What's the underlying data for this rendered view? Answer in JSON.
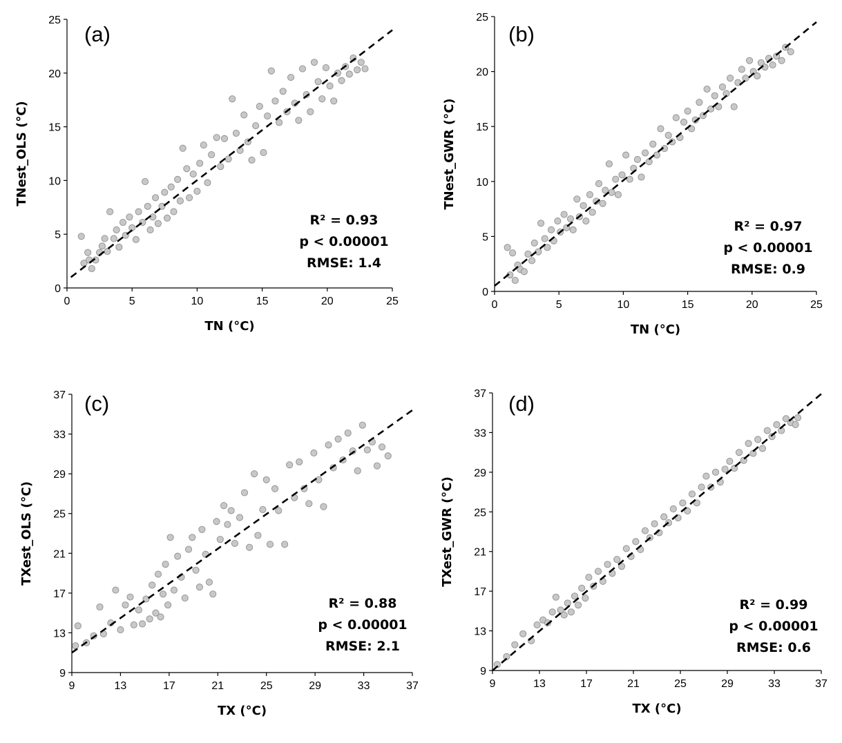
{
  "chart_data": [
    {
      "id": "a",
      "type": "scatter",
      "panel_label": "(a)",
      "xlabel": "TN (°C)",
      "ylabel": "TNest_OLS (°C)",
      "xlim": [
        0,
        25
      ],
      "ylim": [
        0,
        25
      ],
      "xticks": [
        0,
        5,
        10,
        15,
        20,
        25
      ],
      "yticks": [
        0,
        5,
        10,
        15,
        20,
        25
      ],
      "stats": [
        "R² = 0.93",
        "p < 0.00001",
        "RMSE: 1.4"
      ],
      "trendline": {
        "style": "dashed",
        "from": [
          0.3,
          1.0
        ],
        "to": [
          25,
          24
        ]
      },
      "point_color": "#c8c8c8",
      "points": [
        [
          1.1,
          4.8
        ],
        [
          1.3,
          2.3
        ],
        [
          1.6,
          3.3
        ],
        [
          1.7,
          2.6
        ],
        [
          1.9,
          1.8
        ],
        [
          2.2,
          2.6
        ],
        [
          2.5,
          3.3
        ],
        [
          2.7,
          3.9
        ],
        [
          2.9,
          4.6
        ],
        [
          3.1,
          3.4
        ],
        [
          3.3,
          7.1
        ],
        [
          3.6,
          4.6
        ],
        [
          3.8,
          5.4
        ],
        [
          4.0,
          3.8
        ],
        [
          4.3,
          6.1
        ],
        [
          4.5,
          4.9
        ],
        [
          4.8,
          6.6
        ],
        [
          5.0,
          5.6
        ],
        [
          5.3,
          4.5
        ],
        [
          5.5,
          7.1
        ],
        [
          5.8,
          6.1
        ],
        [
          6.0,
          9.9
        ],
        [
          6.2,
          7.6
        ],
        [
          6.4,
          5.4
        ],
        [
          6.6,
          6.6
        ],
        [
          6.8,
          8.4
        ],
        [
          7.0,
          6.0
        ],
        [
          7.3,
          7.6
        ],
        [
          7.5,
          8.9
        ],
        [
          7.7,
          6.5
        ],
        [
          8.0,
          9.4
        ],
        [
          8.2,
          7.1
        ],
        [
          8.5,
          10.1
        ],
        [
          8.7,
          8.1
        ],
        [
          8.9,
          13.0
        ],
        [
          9.2,
          11.1
        ],
        [
          9.4,
          8.4
        ],
        [
          9.7,
          10.6
        ],
        [
          10.0,
          9.0
        ],
        [
          10.2,
          11.6
        ],
        [
          10.5,
          13.3
        ],
        [
          10.8,
          9.8
        ],
        [
          11.1,
          12.4
        ],
        [
          11.5,
          14.0
        ],
        [
          11.8,
          11.3
        ],
        [
          12.1,
          13.9
        ],
        [
          12.4,
          12.0
        ],
        [
          12.7,
          17.6
        ],
        [
          13.0,
          14.4
        ],
        [
          13.3,
          12.8
        ],
        [
          13.6,
          16.1
        ],
        [
          13.9,
          13.6
        ],
        [
          14.2,
          11.9
        ],
        [
          14.5,
          15.1
        ],
        [
          14.8,
          16.9
        ],
        [
          15.1,
          12.6
        ],
        [
          15.4,
          16.0
        ],
        [
          15.7,
          20.2
        ],
        [
          16.0,
          17.4
        ],
        [
          16.3,
          15.4
        ],
        [
          16.6,
          18.3
        ],
        [
          16.9,
          16.4
        ],
        [
          17.2,
          19.6
        ],
        [
          17.5,
          17.2
        ],
        [
          17.8,
          15.6
        ],
        [
          18.1,
          20.4
        ],
        [
          18.4,
          18.0
        ],
        [
          18.7,
          16.4
        ],
        [
          19.0,
          21.0
        ],
        [
          19.3,
          19.2
        ],
        [
          19.6,
          17.6
        ],
        [
          19.9,
          20.5
        ],
        [
          20.2,
          18.8
        ],
        [
          20.5,
          17.4
        ],
        [
          20.8,
          20.0
        ],
        [
          21.1,
          19.3
        ],
        [
          21.4,
          20.6
        ],
        [
          21.7,
          19.9
        ],
        [
          22.0,
          21.4
        ],
        [
          22.3,
          20.3
        ],
        [
          22.6,
          21.0
        ],
        [
          22.9,
          20.4
        ]
      ]
    },
    {
      "id": "b",
      "type": "scatter",
      "panel_label": "(b)",
      "xlabel": "TN (°C)",
      "ylabel": "TNest_GWR (°C)",
      "xlim": [
        0,
        25
      ],
      "ylim": [
        0,
        25
      ],
      "xticks": [
        0,
        5,
        10,
        15,
        20,
        25
      ],
      "yticks": [
        0,
        5,
        10,
        15,
        20,
        25
      ],
      "stats": [
        "R² = 0.97",
        "p < 0.00001",
        "RMSE: 0.9"
      ],
      "trendline": {
        "style": "dashed",
        "from": [
          0,
          0.5
        ],
        "to": [
          25,
          24.5
        ]
      },
      "point_color": "#c8c8c8",
      "points": [
        [
          1.0,
          4.0
        ],
        [
          1.2,
          1.5
        ],
        [
          1.4,
          3.5
        ],
        [
          1.6,
          1.0
        ],
        [
          1.8,
          2.4
        ],
        [
          2.0,
          2.0
        ],
        [
          2.3,
          1.8
        ],
        [
          2.6,
          3.4
        ],
        [
          2.9,
          2.8
        ],
        [
          3.1,
          4.4
        ],
        [
          3.4,
          3.6
        ],
        [
          3.6,
          6.2
        ],
        [
          3.9,
          4.8
        ],
        [
          4.1,
          4.0
        ],
        [
          4.4,
          5.6
        ],
        [
          4.6,
          4.6
        ],
        [
          4.9,
          6.4
        ],
        [
          5.1,
          5.4
        ],
        [
          5.4,
          7.0
        ],
        [
          5.6,
          5.8
        ],
        [
          5.9,
          6.6
        ],
        [
          6.1,
          5.6
        ],
        [
          6.4,
          8.4
        ],
        [
          6.6,
          6.8
        ],
        [
          6.9,
          7.8
        ],
        [
          7.1,
          6.4
        ],
        [
          7.4,
          8.8
        ],
        [
          7.6,
          7.2
        ],
        [
          7.9,
          8.2
        ],
        [
          8.1,
          9.8
        ],
        [
          8.4,
          8.0
        ],
        [
          8.6,
          9.2
        ],
        [
          8.9,
          11.6
        ],
        [
          9.1,
          9.0
        ],
        [
          9.4,
          10.2
        ],
        [
          9.6,
          8.8
        ],
        [
          9.9,
          10.6
        ],
        [
          10.2,
          12.4
        ],
        [
          10.5,
          10.2
        ],
        [
          10.8,
          11.2
        ],
        [
          11.1,
          12.0
        ],
        [
          11.4,
          10.4
        ],
        [
          11.7,
          12.6
        ],
        [
          12.0,
          11.8
        ],
        [
          12.3,
          13.4
        ],
        [
          12.6,
          12.4
        ],
        [
          12.9,
          14.8
        ],
        [
          13.2,
          13.0
        ],
        [
          13.5,
          14.2
        ],
        [
          13.8,
          13.6
        ],
        [
          14.1,
          15.8
        ],
        [
          14.4,
          14.0
        ],
        [
          14.7,
          15.4
        ],
        [
          15.0,
          16.4
        ],
        [
          15.3,
          14.8
        ],
        [
          15.6,
          15.6
        ],
        [
          15.9,
          17.2
        ],
        [
          16.2,
          16.0
        ],
        [
          16.5,
          18.4
        ],
        [
          16.8,
          16.6
        ],
        [
          17.1,
          17.8
        ],
        [
          17.4,
          16.8
        ],
        [
          17.7,
          18.6
        ],
        [
          18.0,
          18.0
        ],
        [
          18.3,
          19.4
        ],
        [
          18.6,
          16.8
        ],
        [
          18.9,
          19.0
        ],
        [
          19.2,
          20.2
        ],
        [
          19.5,
          19.4
        ],
        [
          19.8,
          21.0
        ],
        [
          20.1,
          20.0
        ],
        [
          20.4,
          19.6
        ],
        [
          20.7,
          20.8
        ],
        [
          21.0,
          20.4
        ],
        [
          21.3,
          21.2
        ],
        [
          21.6,
          20.6
        ],
        [
          21.9,
          21.4
        ],
        [
          22.3,
          21.0
        ],
        [
          22.6,
          22.2
        ],
        [
          23.0,
          21.8
        ]
      ]
    },
    {
      "id": "c",
      "type": "scatter",
      "panel_label": "(c)",
      "xlabel": "TX (°C)",
      "ylabel": "TXest_OLS (°C)",
      "xlim": [
        9,
        37
      ],
      "ylim": [
        9,
        37
      ],
      "xticks": [
        9,
        13,
        17,
        21,
        25,
        29,
        33,
        37
      ],
      "yticks": [
        9,
        13,
        17,
        21,
        25,
        29,
        33,
        37
      ],
      "stats": [
        "R² = 0.88",
        "p < 0.00001",
        "RMSE: 2.1"
      ],
      "trendline": {
        "style": "dashed",
        "from": [
          9,
          11.0
        ],
        "to": [
          37,
          35.4
        ]
      },
      "point_color": "#c8c8c8",
      "points": [
        [
          9.3,
          11.7
        ],
        [
          9.5,
          13.7
        ],
        [
          10.2,
          12.0
        ],
        [
          10.8,
          12.7
        ],
        [
          11.3,
          15.6
        ],
        [
          11.6,
          12.9
        ],
        [
          12.2,
          14.0
        ],
        [
          12.6,
          17.3
        ],
        [
          13.0,
          13.3
        ],
        [
          13.4,
          15.8
        ],
        [
          13.8,
          16.6
        ],
        [
          14.1,
          13.8
        ],
        [
          14.5,
          15.3
        ],
        [
          14.8,
          13.9
        ],
        [
          15.1,
          16.4
        ],
        [
          15.4,
          14.4
        ],
        [
          15.6,
          17.8
        ],
        [
          15.9,
          15.0
        ],
        [
          16.1,
          18.9
        ],
        [
          16.3,
          14.6
        ],
        [
          16.5,
          16.9
        ],
        [
          16.7,
          19.9
        ],
        [
          16.9,
          15.8
        ],
        [
          17.1,
          22.6
        ],
        [
          17.4,
          17.3
        ],
        [
          17.7,
          20.7
        ],
        [
          18.0,
          18.6
        ],
        [
          18.3,
          16.5
        ],
        [
          18.6,
          21.4
        ],
        [
          18.9,
          22.6
        ],
        [
          19.2,
          19.3
        ],
        [
          19.5,
          17.6
        ],
        [
          19.7,
          23.4
        ],
        [
          20.0,
          20.9
        ],
        [
          20.3,
          18.1
        ],
        [
          20.6,
          16.9
        ],
        [
          20.9,
          24.2
        ],
        [
          21.2,
          22.4
        ],
        [
          21.5,
          25.8
        ],
        [
          21.8,
          23.9
        ],
        [
          22.1,
          25.3
        ],
        [
          22.4,
          22.0
        ],
        [
          22.8,
          24.6
        ],
        [
          23.2,
          27.1
        ],
        [
          23.6,
          21.6
        ],
        [
          24.0,
          29.0
        ],
        [
          24.3,
          22.8
        ],
        [
          24.7,
          25.4
        ],
        [
          25.0,
          28.4
        ],
        [
          25.3,
          21.9
        ],
        [
          25.7,
          27.5
        ],
        [
          26.0,
          25.3
        ],
        [
          26.5,
          21.9
        ],
        [
          26.9,
          29.9
        ],
        [
          27.3,
          26.6
        ],
        [
          27.7,
          30.2
        ],
        [
          28.1,
          27.5
        ],
        [
          28.5,
          26.0
        ],
        [
          28.9,
          31.1
        ],
        [
          29.3,
          28.4
        ],
        [
          29.7,
          25.7
        ],
        [
          30.1,
          31.9
        ],
        [
          30.5,
          29.6
        ],
        [
          30.9,
          32.5
        ],
        [
          31.3,
          30.4
        ],
        [
          31.7,
          33.1
        ],
        [
          32.1,
          31.3
        ],
        [
          32.5,
          29.3
        ],
        [
          32.9,
          33.9
        ],
        [
          33.3,
          31.4
        ],
        [
          33.7,
          32.2
        ],
        [
          34.1,
          29.8
        ],
        [
          34.5,
          31.7
        ],
        [
          35.0,
          30.8
        ]
      ]
    },
    {
      "id": "d",
      "type": "scatter",
      "panel_label": "(d)",
      "xlabel": "TX (°C)",
      "ylabel": "TXest_GWR (°C)",
      "xlim": [
        9,
        37
      ],
      "ylim": [
        9,
        37
      ],
      "xticks": [
        9,
        13,
        17,
        21,
        25,
        29,
        33,
        37
      ],
      "yticks": [
        9,
        13,
        17,
        21,
        25,
        29,
        33,
        37
      ],
      "stats": [
        "R² = 0.99",
        "p < 0.00001",
        "RMSE: 0.6"
      ],
      "trendline": {
        "style": "dashed",
        "from": [
          9,
          9.0
        ],
        "to": [
          37,
          36.9
        ]
      },
      "point_color": "#c8c8c8",
      "points": [
        [
          9.4,
          9.6
        ],
        [
          10.2,
          10.4
        ],
        [
          10.9,
          11.6
        ],
        [
          11.6,
          12.7
        ],
        [
          12.3,
          12.0
        ],
        [
          12.8,
          13.6
        ],
        [
          13.3,
          14.1
        ],
        [
          13.7,
          13.8
        ],
        [
          14.1,
          14.9
        ],
        [
          14.4,
          16.4
        ],
        [
          14.8,
          15.1
        ],
        [
          15.1,
          14.6
        ],
        [
          15.4,
          15.8
        ],
        [
          15.7,
          14.9
        ],
        [
          16.0,
          16.5
        ],
        [
          16.3,
          15.6
        ],
        [
          16.6,
          17.3
        ],
        [
          16.9,
          16.3
        ],
        [
          17.2,
          18.4
        ],
        [
          17.6,
          17.5
        ],
        [
          18.0,
          19.0
        ],
        [
          18.4,
          18.0
        ],
        [
          18.8,
          19.7
        ],
        [
          19.2,
          18.8
        ],
        [
          19.6,
          20.2
        ],
        [
          20.0,
          19.5
        ],
        [
          20.4,
          21.3
        ],
        [
          20.8,
          20.5
        ],
        [
          21.2,
          22.0
        ],
        [
          21.6,
          21.2
        ],
        [
          22.0,
          23.1
        ],
        [
          22.4,
          22.4
        ],
        [
          22.8,
          23.8
        ],
        [
          23.2,
          22.9
        ],
        [
          23.6,
          24.5
        ],
        [
          24.0,
          23.9
        ],
        [
          24.4,
          25.3
        ],
        [
          24.8,
          24.4
        ],
        [
          25.2,
          25.9
        ],
        [
          25.6,
          25.1
        ],
        [
          26.0,
          26.8
        ],
        [
          26.4,
          25.9
        ],
        [
          26.8,
          27.5
        ],
        [
          27.2,
          28.6
        ],
        [
          27.6,
          27.5
        ],
        [
          28.0,
          29.0
        ],
        [
          28.4,
          28.0
        ],
        [
          28.8,
          29.3
        ],
        [
          29.2,
          30.1
        ],
        [
          29.6,
          29.4
        ],
        [
          30.0,
          31.0
        ],
        [
          30.4,
          30.2
        ],
        [
          30.8,
          31.9
        ],
        [
          31.2,
          30.9
        ],
        [
          31.6,
          32.3
        ],
        [
          32.0,
          31.4
        ],
        [
          32.4,
          33.2
        ],
        [
          32.8,
          32.6
        ],
        [
          33.2,
          33.8
        ],
        [
          33.6,
          33.2
        ],
        [
          34.0,
          34.4
        ],
        [
          34.4,
          34.0
        ],
        [
          34.8,
          33.8
        ],
        [
          35.0,
          34.5
        ]
      ]
    }
  ]
}
